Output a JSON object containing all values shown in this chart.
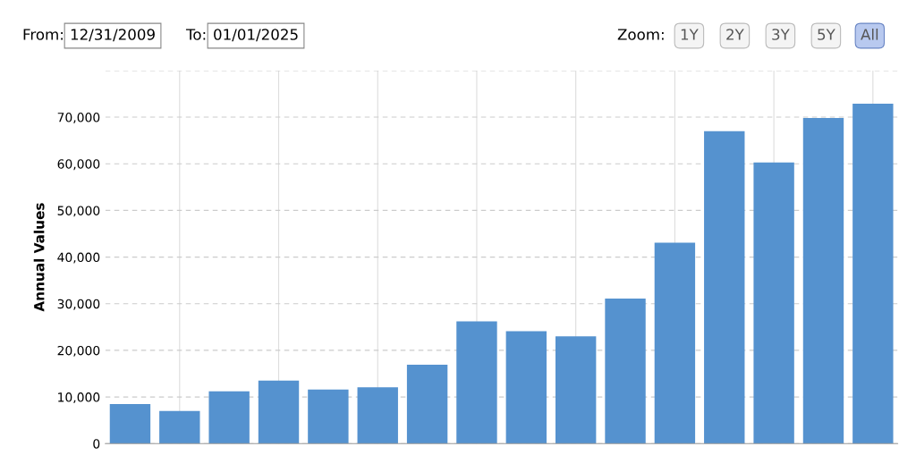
{
  "chart_data": {
    "type": "bar",
    "ylabel": "Annual Values",
    "annotations": [
      "From:",
      "12/31/2009",
      "To:",
      "01/01/2025",
      "Zoom:",
      "1Y",
      "2Y",
      "3Y",
      "5Y",
      "All"
    ],
    "categories": [
      null,
      null,
      null,
      null,
      null,
      null,
      null,
      null,
      null,
      null,
      null,
      null,
      null,
      null,
      null,
      null
    ],
    "values": [
      8500,
      7000,
      11200,
      13500,
      11600,
      12100,
      16900,
      26200,
      24100,
      23000,
      31100,
      43100,
      67000,
      60300,
      69800,
      72900
    ],
    "color": "#5592cf",
    "ylim": [
      0,
      80000
    ],
    "yticks": [
      {
        "value": 0,
        "label": "0"
      },
      {
        "value": 10000,
        "label": "10,000"
      },
      {
        "value": 20000,
        "label": "20,000"
      },
      {
        "value": 30000,
        "label": "30,000"
      },
      {
        "value": 40000,
        "label": "40,000"
      },
      {
        "value": 50000,
        "label": "50,000"
      },
      {
        "value": 60000,
        "label": "60,000"
      },
      {
        "value": 70000,
        "label": "70,000"
      },
      {
        "value": 80000,
        "label": null
      }
    ],
    "grid": true,
    "legend": false
  }
}
